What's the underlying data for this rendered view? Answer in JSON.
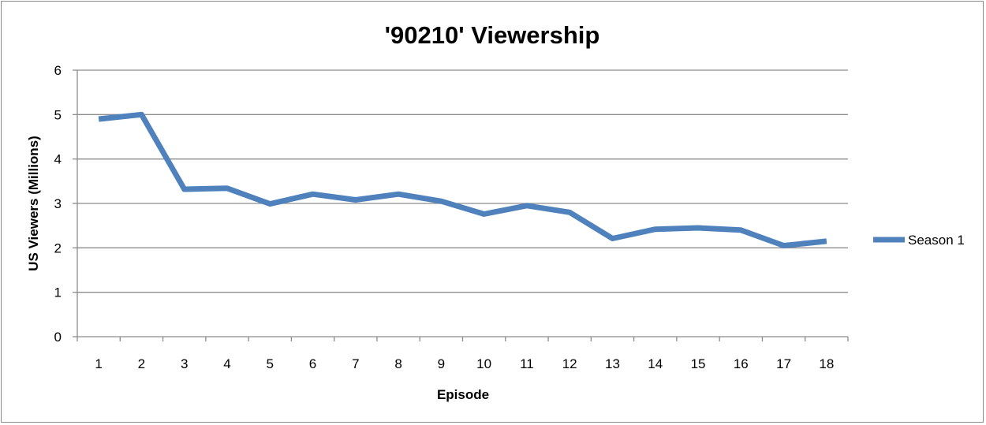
{
  "chart_data": {
    "type": "line",
    "title": "'90210' Viewership",
    "xlabel": "Episode",
    "ylabel": "US Viewers (Millions)",
    "ylim": [
      0,
      6
    ],
    "yticks": [
      "0",
      "1",
      "2",
      "3",
      "4",
      "5",
      "6"
    ],
    "categories": [
      "1",
      "2",
      "3",
      "4",
      "5",
      "6",
      "7",
      "8",
      "9",
      "10",
      "11",
      "12",
      "13",
      "14",
      "15",
      "16",
      "17",
      "18"
    ],
    "series": [
      {
        "name": "Season 1",
        "color": "#4f81bd",
        "values": [
          4.9,
          5.0,
          3.32,
          3.34,
          2.99,
          3.21,
          3.08,
          3.21,
          3.05,
          2.76,
          2.95,
          2.8,
          2.21,
          2.42,
          2.45,
          2.4,
          2.05,
          2.15
        ]
      }
    ],
    "grid": true,
    "gridlines": "horizontal",
    "legend": "right"
  }
}
